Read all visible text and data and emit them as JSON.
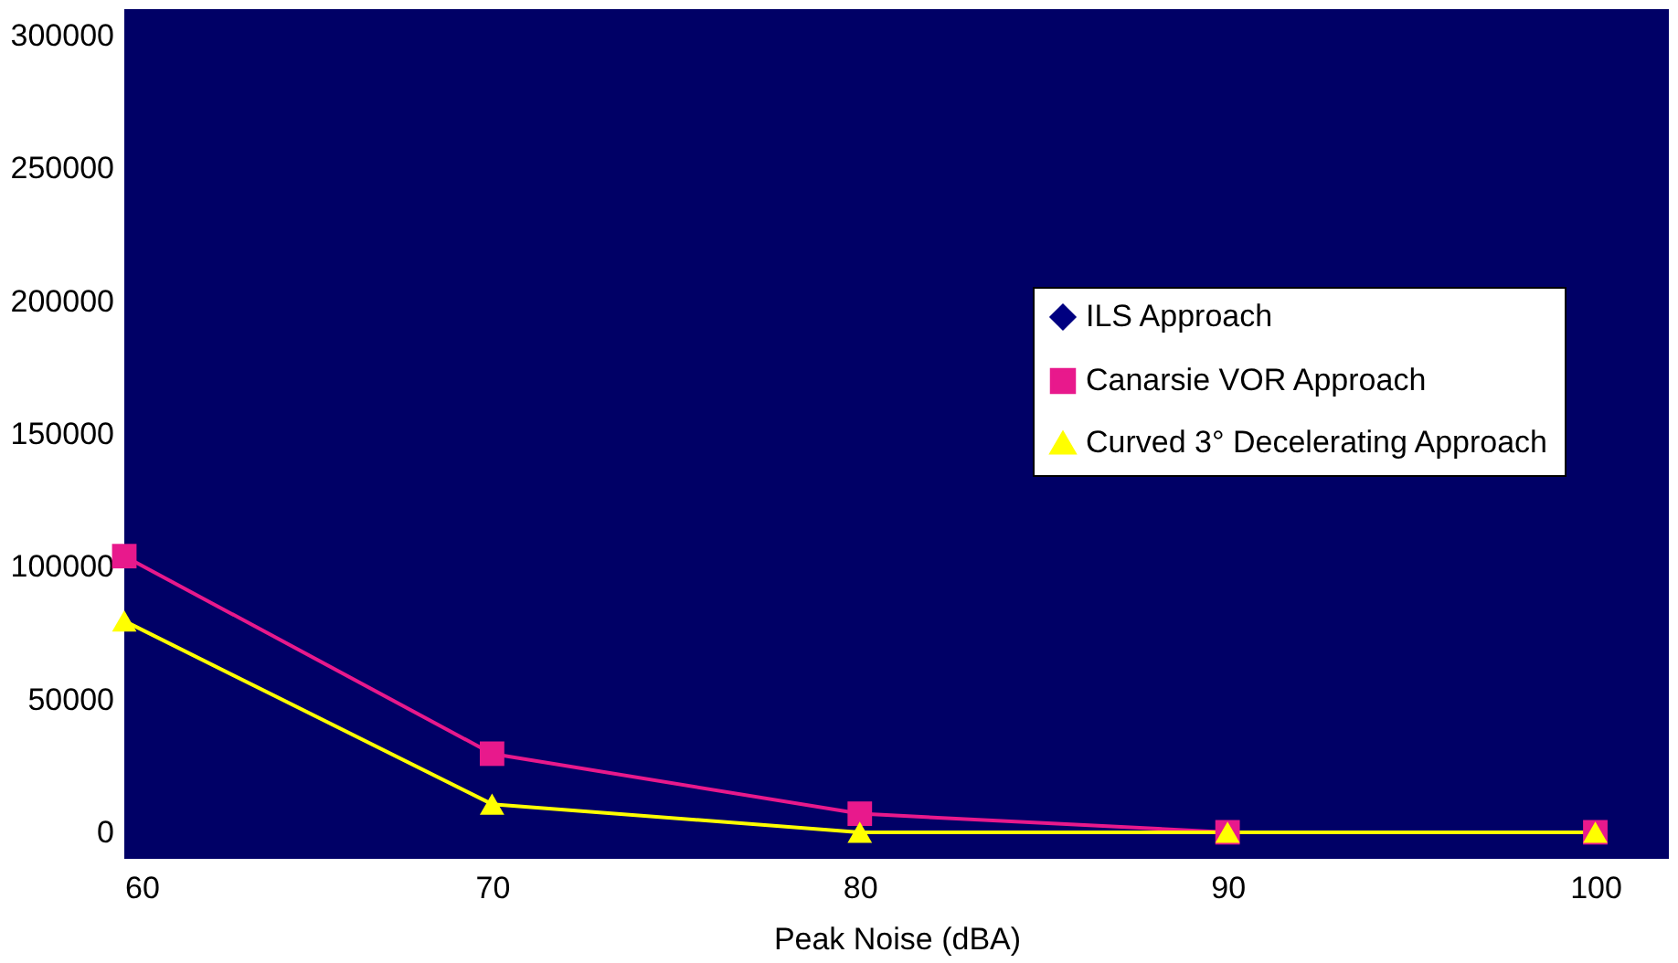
{
  "chart_data": {
    "type": "line",
    "xlabel": "Peak Noise (dBA)",
    "x": [
      60,
      70,
      80,
      90,
      100
    ],
    "xlim": [
      60,
      102
    ],
    "xticks": [
      60,
      70,
      80,
      90,
      100
    ],
    "ylim": [
      -10000,
      310000
    ],
    "yticks": [
      0,
      50000,
      100000,
      150000,
      200000,
      250000,
      300000
    ],
    "grid": false,
    "legend": "right",
    "line_style": "solid",
    "series": [
      {
        "name": "ILS Approach",
        "color": "#000080",
        "marker": "diamond",
        "values": [
          null,
          null,
          null,
          null,
          null
        ]
      },
      {
        "name": "Canarsie VOR Approach",
        "color": "#e8198c",
        "marker": "square",
        "values": [
          104000,
          29600,
          7000,
          0,
          0
        ]
      },
      {
        "name": "Curved 3° Decelerating Approach",
        "color": "#ffff00",
        "marker": "triangle",
        "values": [
          79600,
          10600,
          0,
          0,
          0
        ]
      }
    ]
  }
}
